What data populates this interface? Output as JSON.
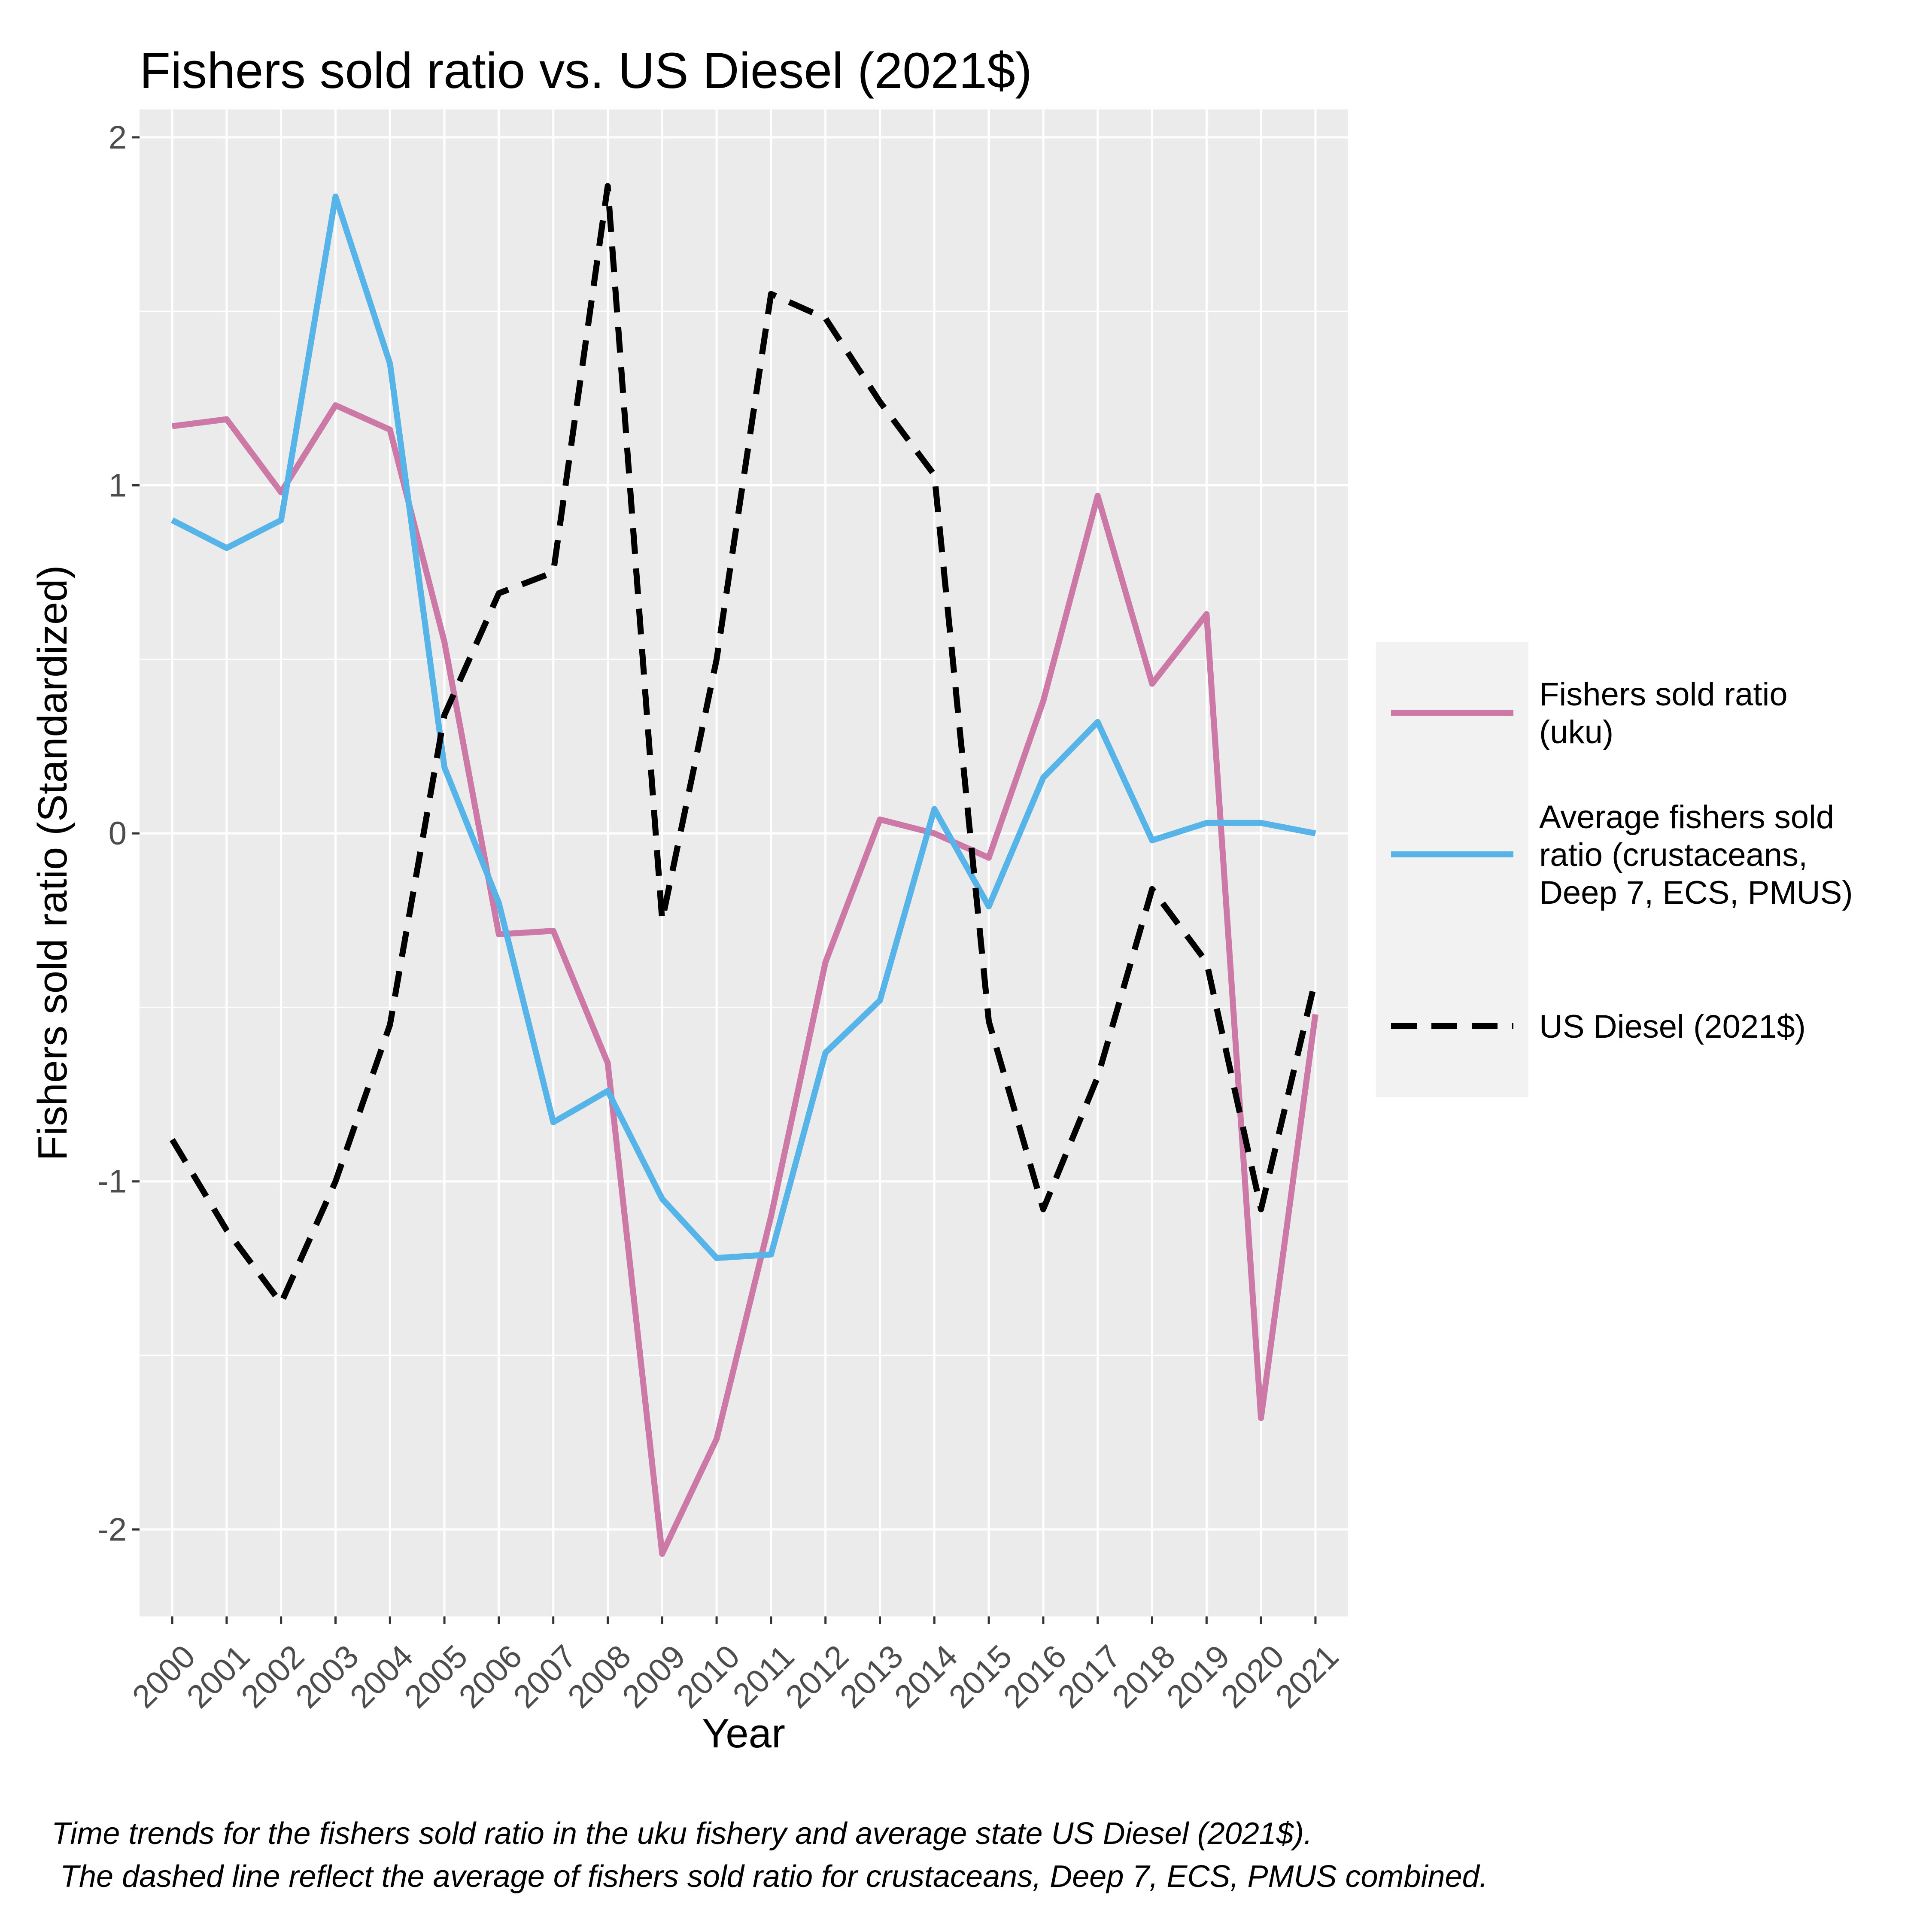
{
  "chart_data": {
    "type": "line",
    "title": "Fishers sold ratio vs. US Diesel (2021$)",
    "xlabel": "Year",
    "ylabel": "Fishers sold ratio (Standardized)",
    "x": [
      2000,
      2001,
      2002,
      2003,
      2004,
      2005,
      2006,
      2007,
      2008,
      2009,
      2010,
      2011,
      2012,
      2013,
      2014,
      2015,
      2016,
      2017,
      2018,
      2019,
      2020,
      2021
    ],
    "ylim": [
      -2.25,
      2.08
    ],
    "yticks": [
      -2,
      -1,
      0,
      1,
      2
    ],
    "grid": true,
    "legend_position": "right",
    "series": [
      {
        "name": "Fishers sold ratio\n(uku)",
        "color": "#CC79A7",
        "dash": "solid",
        "values": [
          1.17,
          1.19,
          0.98,
          1.23,
          1.16,
          0.55,
          -0.29,
          -0.28,
          -0.66,
          -2.07,
          -1.74,
          -1.1,
          -0.37,
          0.04,
          0.0,
          -0.07,
          0.38,
          0.97,
          0.43,
          0.63,
          -1.68,
          -0.52
        ]
      },
      {
        "name": "Average fishers sold\nratio (crustaceans,\nDeep 7, ECS, PMUS)",
        "color": "#56B4E9",
        "dash": "solid",
        "values": [
          0.9,
          0.82,
          0.9,
          1.83,
          1.35,
          0.19,
          -0.2,
          -0.83,
          -0.74,
          -1.05,
          -1.22,
          -1.21,
          -0.63,
          -0.48,
          0.07,
          -0.21,
          0.16,
          0.32,
          -0.02,
          0.03,
          0.03,
          0.0
        ]
      },
      {
        "name": "US Diesel (2021$)",
        "color": "#000000",
        "dash": "dashed",
        "values": [
          -0.88,
          -1.14,
          -1.35,
          -1.0,
          -0.55,
          0.34,
          0.69,
          0.75,
          1.86,
          -0.25,
          0.5,
          1.55,
          1.48,
          1.24,
          1.03,
          -0.54,
          -1.08,
          -0.7,
          -0.16,
          -0.37,
          -1.08,
          -0.42
        ]
      }
    ]
  },
  "caption": {
    "line1": "Time trends for the fishers sold ratio in the uku fishery and average state US Diesel (2021$).",
    "line2": " The dashed line reflect the average of fishers sold ratio for crustaceans, Deep 7, ECS, PMUS combined."
  }
}
